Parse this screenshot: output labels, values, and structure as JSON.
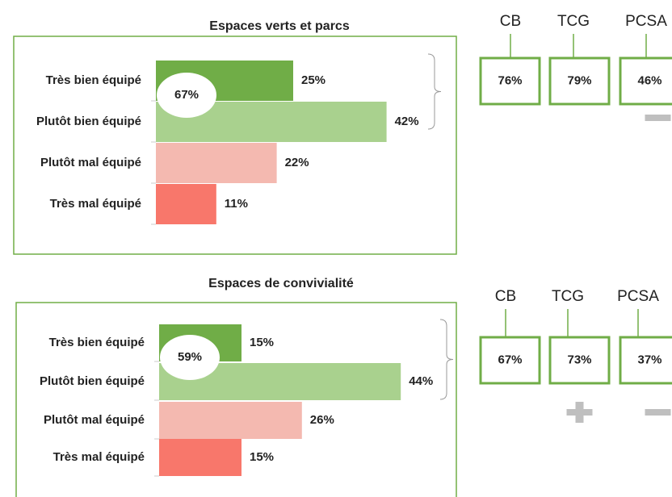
{
  "chart_data": [
    {
      "type": "bar",
      "orientation": "horizontal",
      "title": "Espaces verts et parcs",
      "categories": [
        "Très bien équipé",
        "Plutôt bien équipé",
        "Plutôt mal équipé",
        "Très mal équipé"
      ],
      "values": [
        25,
        42,
        22,
        11
      ],
      "value_labels": [
        "25%",
        "42%",
        "22%",
        "11%"
      ],
      "colors": [
        "#70ad47",
        "#a9d18e",
        "#f4b9b0",
        "#f8776b"
      ],
      "annotation": "67%"
    },
    {
      "type": "bar",
      "orientation": "horizontal",
      "title": "Espaces de convivialité",
      "categories": [
        "Très bien équipé",
        "Plutôt bien équipé",
        "Plutôt mal équipé",
        "Très mal équipé"
      ],
      "values": [
        15,
        44,
        26,
        15
      ],
      "value_labels": [
        "15%",
        "44%",
        "26%",
        "15%"
      ],
      "colors": [
        "#70ad47",
        "#a9d18e",
        "#f4b9b0",
        "#f8776b"
      ],
      "annotation": "59%"
    }
  ],
  "comparisons": [
    {
      "groups": [
        "CB",
        "TCG",
        "PCSA"
      ],
      "values": [
        "76%",
        "79%",
        "46%"
      ],
      "indicators": [
        null,
        null,
        "minus"
      ]
    },
    {
      "groups": [
        "CB",
        "TCG",
        "PCSA"
      ],
      "values": [
        "67%",
        "73%",
        "37%"
      ],
      "indicators": [
        null,
        "plus",
        "minus"
      ]
    }
  ]
}
